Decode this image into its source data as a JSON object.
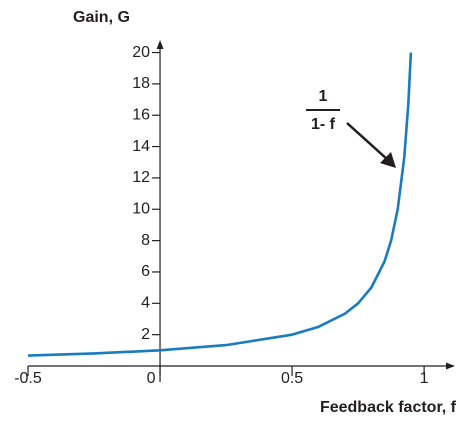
{
  "chart_data": {
    "type": "line",
    "ylabel": "Gain, G",
    "xlabel": "Feedback factor, f",
    "annotation": {
      "numerator": "1",
      "denominator": "1- f"
    },
    "x": [
      -0.5,
      -0.25,
      0,
      0.25,
      0.5,
      0.6,
      0.7,
      0.75,
      0.8,
      0.85,
      0.875,
      0.9,
      0.925,
      0.94,
      0.95
    ],
    "values": [
      0.667,
      0.8,
      1,
      1.333,
      2,
      2.5,
      3.333,
      4,
      5,
      6.667,
      8,
      10,
      13.333,
      16.667,
      20
    ],
    "color": "#1a7bbf",
    "xlim": [
      -0.5,
      1.117
    ],
    "ylim": [
      0,
      20.8
    ],
    "xticks": [
      -0.5,
      0,
      0.5,
      1
    ],
    "yticks": [
      2,
      4,
      6,
      8,
      10,
      12,
      14,
      16,
      18,
      20
    ]
  }
}
